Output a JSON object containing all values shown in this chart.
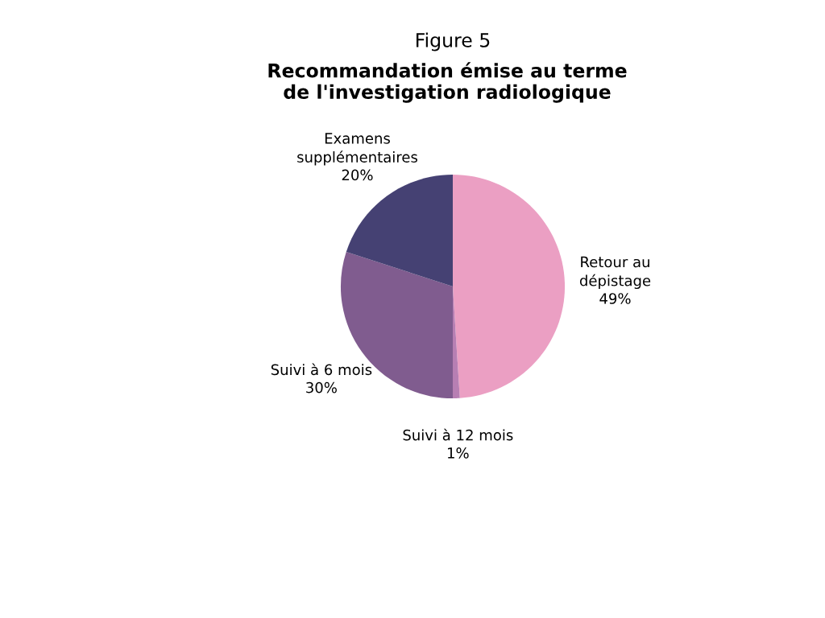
{
  "chart_data": {
    "type": "pie",
    "title": "Figure 5",
    "subtitle": "Recommandation émise au terme\nde l'investigation radiologique",
    "categories": [
      "Retour au\ndépistage",
      "Suivi à 12 mois",
      "Suivi à 6 mois",
      "Examens\nsupplémentaires"
    ],
    "values": [
      49,
      1,
      30,
      20
    ],
    "colors": [
      "#eb9fc3",
      "#b77fb3",
      "#805c8f",
      "#454173"
    ],
    "value_labels": [
      "49%",
      "1%",
      "30%",
      "20%"
    ],
    "legend": false
  }
}
